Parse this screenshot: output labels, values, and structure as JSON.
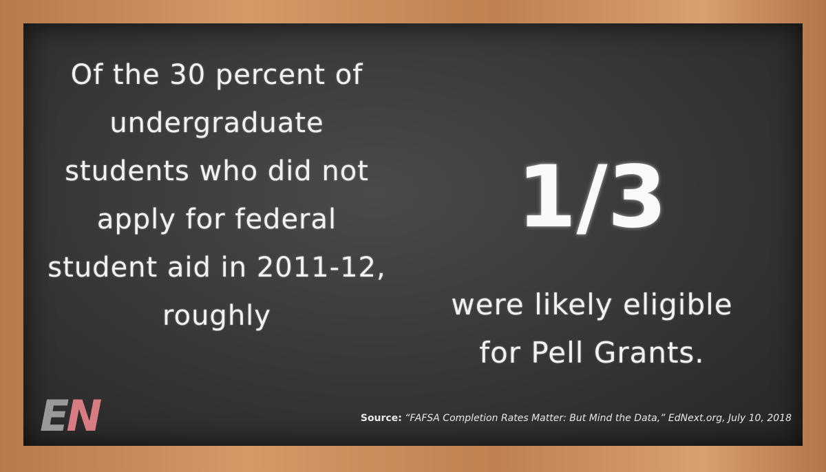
{
  "left_text": {
    "lines": [
      "Of the 30 percent of",
      "undergraduate",
      "students who did not",
      "apply for federal",
      "student aid in 2011-12,",
      "roughly"
    ]
  },
  "highlight": "1/3",
  "right_text": {
    "lines": [
      "were likely eligible",
      "for Pell Grants."
    ]
  },
  "source": {
    "label": "Source:",
    "text": "“FAFSA Completion Rates Matter: But Mind the Data,” EdNext.org, July 10, 2018"
  },
  "logo": {
    "letters": [
      "E",
      "N"
    ]
  }
}
